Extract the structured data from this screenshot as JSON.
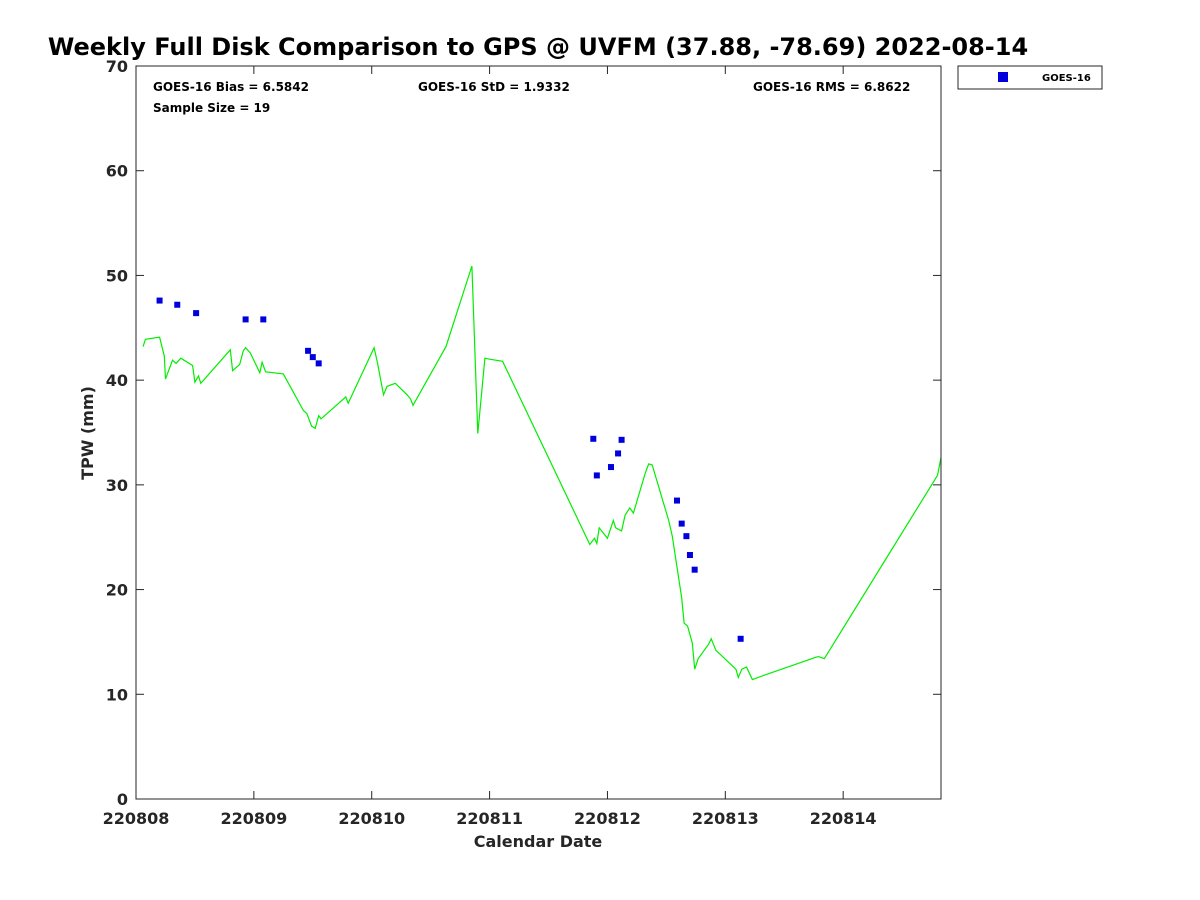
{
  "chart_data": {
    "type": "scatter",
    "title": "Weekly Full Disk Comparison to GPS @ UVFM (37.88, -78.69) 2022-08-14",
    "xlabel": "Calendar Date",
    "ylabel": "TPW (mm)",
    "xlim": [
      0,
      6.83
    ],
    "ylim": [
      0,
      70
    ],
    "xticks": [
      {
        "value": 0,
        "label": "220808"
      },
      {
        "value": 1,
        "label": "220809"
      },
      {
        "value": 2,
        "label": "220810"
      },
      {
        "value": 3,
        "label": "220811"
      },
      {
        "value": 4,
        "label": "220812"
      },
      {
        "value": 5,
        "label": "220813"
      },
      {
        "value": 6,
        "label": "220814"
      }
    ],
    "yticks": [
      {
        "value": 0,
        "label": "0"
      },
      {
        "value": 10,
        "label": "10"
      },
      {
        "value": 20,
        "label": "20"
      },
      {
        "value": 30,
        "label": "30"
      },
      {
        "value": 40,
        "label": "40"
      },
      {
        "value": 50,
        "label": "50"
      },
      {
        "value": 60,
        "label": "60"
      },
      {
        "value": 70,
        "label": "70"
      }
    ],
    "stats": {
      "bias": "GOES-16 Bias = 6.5842",
      "sample": "Sample Size = 19",
      "std": "GOES-16 StD = 1.9332",
      "rms": "GOES-16 RMS = 6.8622"
    },
    "legend": {
      "label": "GOES-16",
      "position": "top-right outside"
    },
    "series": [
      {
        "name": "GOES-16",
        "kind": "scatter",
        "color": "#0000dd",
        "points": [
          [
            0.2,
            47.6
          ],
          [
            0.35,
            47.2
          ],
          [
            0.51,
            46.4
          ],
          [
            0.93,
            45.8
          ],
          [
            1.08,
            45.8
          ],
          [
            1.46,
            42.8
          ],
          [
            1.5,
            42.2
          ],
          [
            1.55,
            41.6
          ],
          [
            3.88,
            34.4
          ],
          [
            3.91,
            30.9
          ],
          [
            4.03,
            31.7
          ],
          [
            4.09,
            33.0
          ],
          [
            4.12,
            34.3
          ],
          [
            4.59,
            28.5
          ],
          [
            4.63,
            26.3
          ],
          [
            4.67,
            25.1
          ],
          [
            4.7,
            23.3
          ],
          [
            4.74,
            21.9
          ],
          [
            5.13,
            15.3
          ]
        ]
      },
      {
        "name": "GPS",
        "kind": "line",
        "color": "#00ee00",
        "points": [
          [
            0.06,
            43.2
          ],
          [
            0.08,
            43.9
          ],
          [
            0.2,
            44.1
          ],
          [
            0.24,
            42.3
          ],
          [
            0.25,
            40.1
          ],
          [
            0.31,
            41.9
          ],
          [
            0.34,
            41.6
          ],
          [
            0.38,
            42.1
          ],
          [
            0.48,
            41.4
          ],
          [
            0.5,
            39.8
          ],
          [
            0.53,
            40.4
          ],
          [
            0.55,
            39.7
          ],
          [
            0.8,
            42.9
          ],
          [
            0.82,
            40.9
          ],
          [
            0.88,
            41.5
          ],
          [
            0.91,
            42.8
          ],
          [
            0.93,
            43.1
          ],
          [
            0.97,
            42.6
          ],
          [
            1.05,
            40.7
          ],
          [
            1.07,
            41.7
          ],
          [
            1.1,
            40.8
          ],
          [
            1.25,
            40.6
          ],
          [
            1.42,
            37.1
          ],
          [
            1.45,
            36.8
          ],
          [
            1.49,
            35.6
          ],
          [
            1.52,
            35.4
          ],
          [
            1.55,
            36.6
          ],
          [
            1.57,
            36.3
          ],
          [
            1.78,
            38.4
          ],
          [
            1.8,
            37.8
          ],
          [
            2.02,
            43.1
          ],
          [
            2.05,
            41.6
          ],
          [
            2.1,
            38.6
          ],
          [
            2.13,
            39.4
          ],
          [
            2.2,
            39.7
          ],
          [
            2.3,
            38.6
          ],
          [
            2.33,
            38.2
          ],
          [
            2.35,
            37.6
          ],
          [
            2.63,
            43.2
          ],
          [
            2.85,
            50.9
          ],
          [
            2.9,
            34.9
          ],
          [
            2.96,
            42.1
          ],
          [
            3.0,
            42.0
          ],
          [
            3.11,
            41.8
          ],
          [
            3.85,
            24.3
          ],
          [
            3.89,
            24.9
          ],
          [
            3.91,
            24.4
          ],
          [
            3.93,
            25.9
          ],
          [
            4.0,
            24.9
          ],
          [
            4.05,
            26.6
          ],
          [
            4.07,
            25.9
          ],
          [
            4.12,
            25.6
          ],
          [
            4.15,
            27.1
          ],
          [
            4.19,
            27.8
          ],
          [
            4.22,
            27.3
          ],
          [
            4.32,
            31.1
          ],
          [
            4.35,
            32.0
          ],
          [
            4.38,
            31.9
          ],
          [
            4.52,
            26.6
          ],
          [
            4.55,
            25.1
          ],
          [
            4.63,
            19.2
          ],
          [
            4.65,
            16.8
          ],
          [
            4.68,
            16.5
          ],
          [
            4.72,
            14.9
          ],
          [
            4.74,
            12.4
          ],
          [
            4.77,
            13.4
          ],
          [
            4.86,
            14.8
          ],
          [
            4.88,
            15.3
          ],
          [
            4.92,
            14.2
          ],
          [
            5.09,
            12.4
          ],
          [
            5.11,
            11.6
          ],
          [
            5.14,
            12.4
          ],
          [
            5.18,
            12.6
          ],
          [
            5.23,
            11.4
          ],
          [
            5.3,
            11.7
          ],
          [
            5.76,
            13.5
          ],
          [
            5.79,
            13.6
          ],
          [
            5.84,
            13.4
          ],
          [
            6.8,
            30.9
          ],
          [
            6.83,
            32.6
          ]
        ]
      }
    ]
  }
}
